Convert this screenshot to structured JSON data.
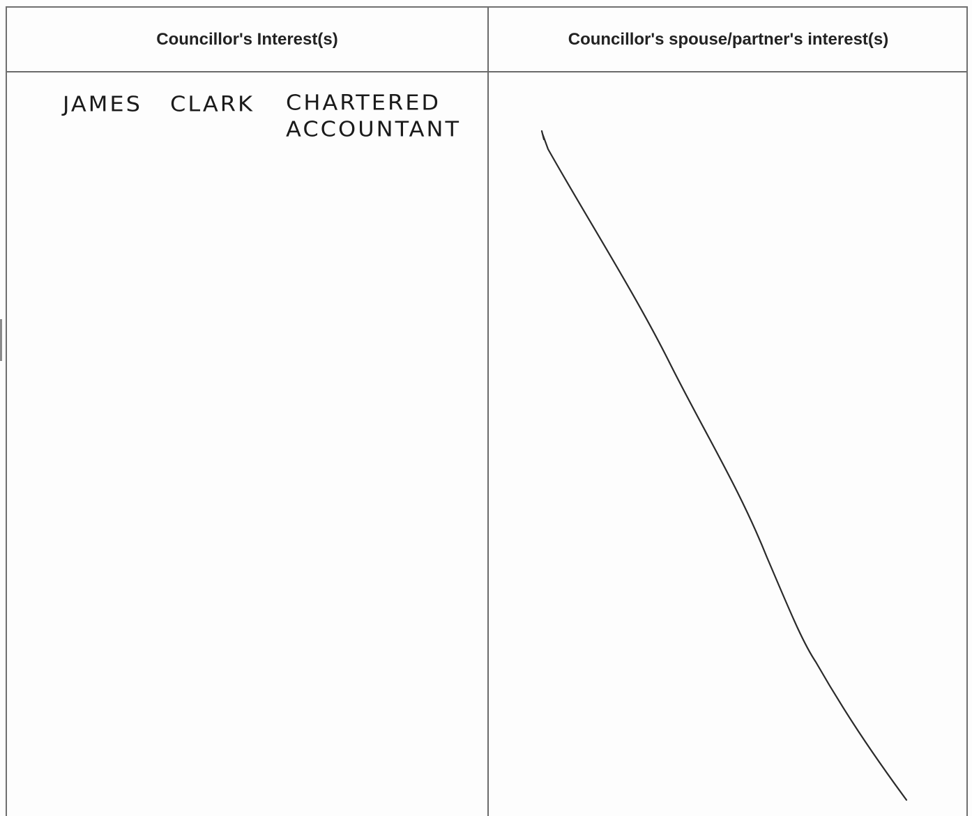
{
  "headers": {
    "councillor": "Councillor's Interest(s)",
    "spouse": "Councillor's spouse/partner's interest(s)"
  },
  "councillor_entry": {
    "first_name": "JAMES",
    "surname": "CLARK",
    "occupation_line1": "CHARTERED",
    "occupation_line2": "ACCOUNTANT"
  },
  "spouse_entry": {
    "mark": "diagonal-strike-line"
  }
}
